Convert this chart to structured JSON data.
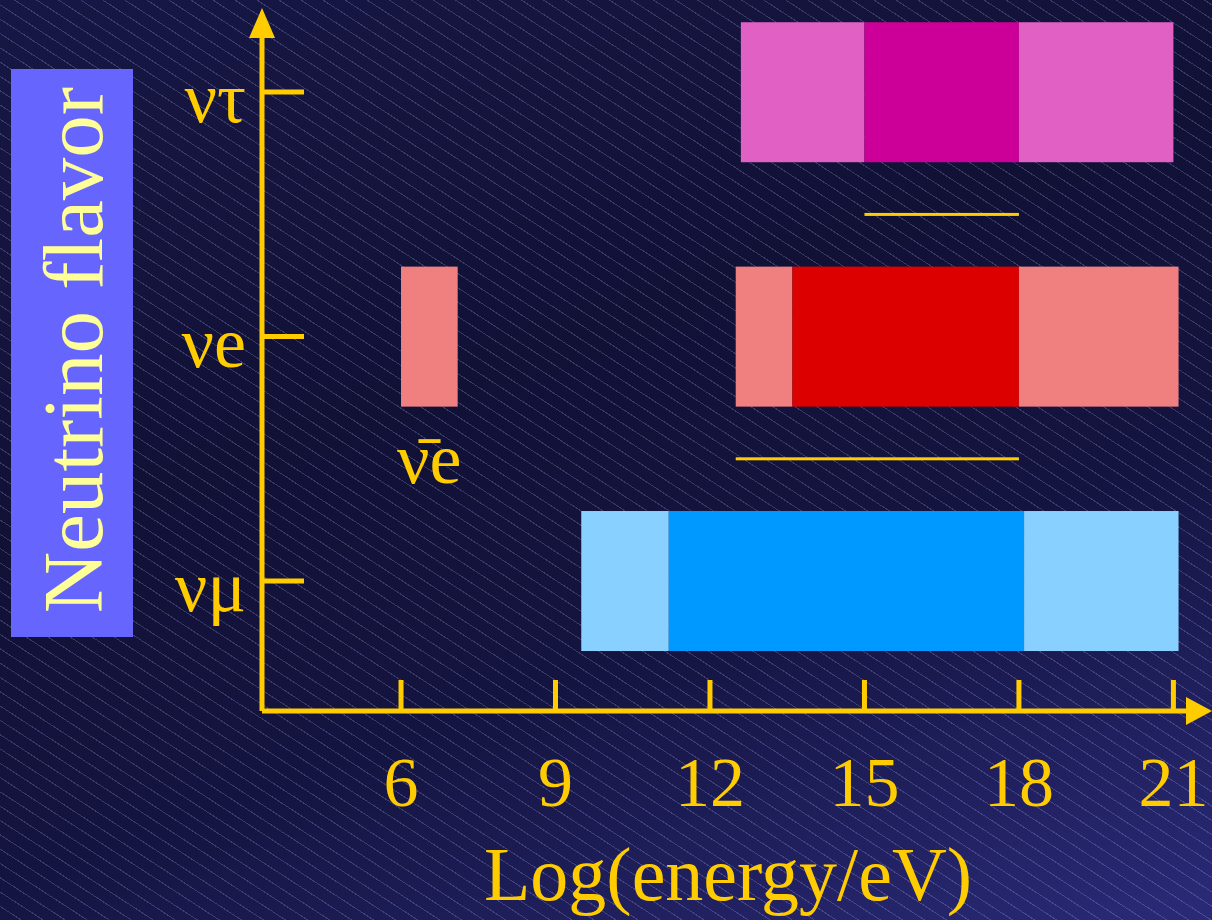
{
  "chart_data": {
    "type": "bar",
    "orientation": "horizontal",
    "xlabel": "Log(energy/eV)",
    "ylabel": "Neutrino flavor",
    "categories": [
      "ντ",
      null,
      "νe",
      null,
      "νμ"
    ],
    "series": [
      {
        "colors": [
          "#e060c4",
          null,
          "#f08080",
          null,
          "#88d0ff"
        ],
        "base": [
          12.6,
          null,
          12.5,
          null,
          9.5
        ],
        "values": [
          2.4,
          null,
          1.1,
          null,
          1.7
        ]
      },
      {
        "colors": [
          "#cc0099",
          null,
          "#dd0000",
          null,
          "#0099ff"
        ],
        "base": [
          15,
          null,
          13.6,
          null,
          11.2
        ],
        "values": [
          3,
          null,
          4.4,
          null,
          6.9
        ]
      },
      {
        "colors": [
          "#e060c4",
          null,
          "#f08080",
          null,
          "#88d0ff"
        ],
        "base": [
          18,
          null,
          18,
          null,
          18.1
        ],
        "values": [
          3,
          null,
          3.1,
          null,
          3
        ]
      },
      {
        "colors": [
          null,
          null,
          "#f08080",
          null,
          null
        ],
        "base": [
          null,
          null,
          6,
          null,
          null
        ],
        "values": [
          null,
          null,
          1.1,
          null,
          null
        ]
      },
      {
        "color": "#ffcc00",
        "base": [
          null,
          15,
          null,
          12.5,
          null
        ],
        "values": [
          null,
          3,
          null,
          5.5,
          null
        ]
      }
    ],
    "xlim": [
      3.3,
      21.4
    ],
    "xticks": [
      6,
      9,
      12,
      15,
      18,
      21
    ],
    "annotations": [
      {
        "text": "ν̄e",
        "x": 6,
        "y": "νe"
      }
    ]
  }
}
